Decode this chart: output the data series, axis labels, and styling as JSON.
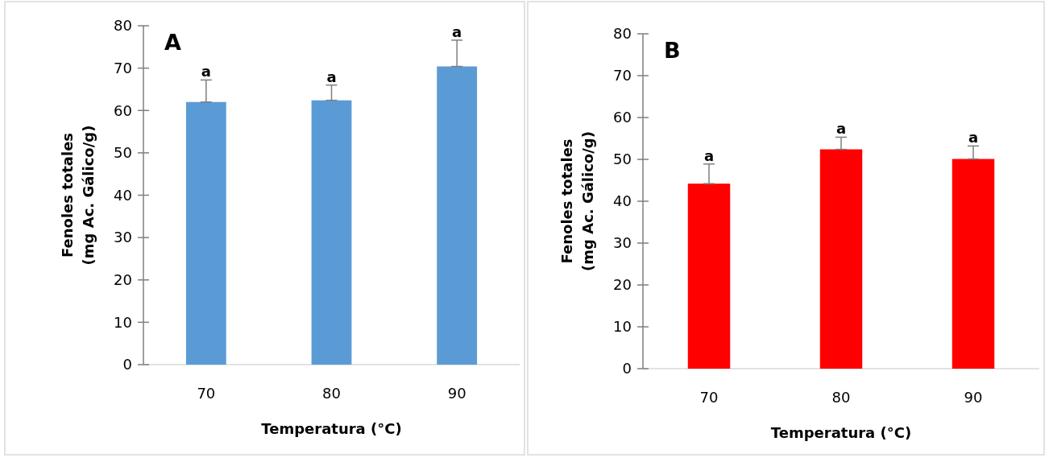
{
  "chart_data": [
    {
      "type": "bar",
      "title": "A",
      "xlabel": "Temperatura  (°C)",
      "ylabel": "Fenoles  totales\n(mg Ac. Gálico/g)",
      "categories": [
        "70",
        "80",
        "90"
      ],
      "values": [
        62,
        62.4,
        70.4
      ],
      "color": "#5b9bd5",
      "errors": [
        [
          62,
          67.2
        ],
        [
          62.4,
          66
        ],
        [
          70.4,
          76.6
        ]
      ],
      "ylim": [
        0,
        80
      ],
      "yticks": [
        0,
        10,
        20,
        30,
        40,
        50,
        60,
        70,
        80
      ],
      "annotations": [
        {
          "text": "a",
          "x": "70",
          "y": 67.2
        },
        {
          "text": "a",
          "x": "80",
          "y": 66
        },
        {
          "text": "a",
          "x": "90",
          "y": 76.6
        }
      ]
    },
    {
      "type": "bar",
      "title": "B",
      "xlabel": "Temperatura  (°C)",
      "ylabel": "Fenoles  totales\n(mg Ac. Gálico/g)",
      "categories": [
        "70",
        "80",
        "90"
      ],
      "values": [
        44.2,
        52.4,
        50.1
      ],
      "color": "#ff0000",
      "errors": [
        [
          44.2,
          48.9
        ],
        [
          52.4,
          55.3
        ],
        [
          50.1,
          53.2
        ]
      ],
      "ylim": [
        0,
        80
      ],
      "yticks": [
        0,
        10,
        20,
        30,
        40,
        50,
        60,
        70,
        80
      ],
      "annotations": [
        {
          "text": "a",
          "x": "70",
          "y": 48.9
        },
        {
          "text": "a",
          "x": "80",
          "y": 55.3
        },
        {
          "text": "a",
          "x": "90",
          "y": 53.2
        }
      ]
    }
  ]
}
